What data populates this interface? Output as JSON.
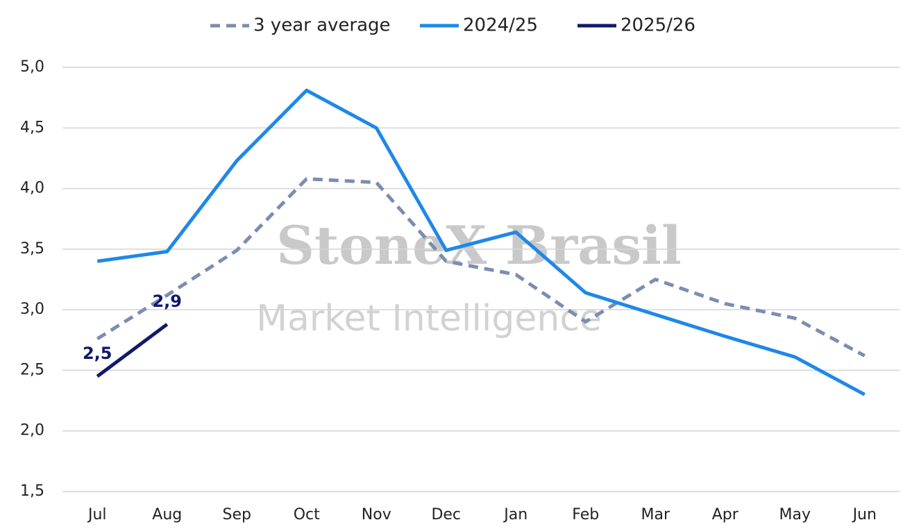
{
  "chart_data": {
    "type": "line",
    "watermark": [
      "StoneX Brasil",
      "Market Intelligence"
    ],
    "categories": [
      "Jul",
      "Aug",
      "Sep",
      "Oct",
      "Nov",
      "Dec",
      "Jan",
      "Feb",
      "Mar",
      "Apr",
      "May",
      "Jun"
    ],
    "series": [
      {
        "name": "3 year average",
        "color": "#7b8db0",
        "dashed": true,
        "values": [
          2.76,
          3.12,
          3.49,
          4.08,
          4.05,
          3.4,
          3.29,
          2.9,
          3.25,
          3.05,
          2.93,
          2.62
        ]
      },
      {
        "name": "2024/25",
        "color": "#1e88e8",
        "values": [
          3.4,
          3.48,
          4.23,
          4.81,
          4.5,
          3.49,
          3.64,
          3.14,
          2.96,
          2.78,
          2.61,
          2.3
        ]
      },
      {
        "name": "2025/26",
        "color": "#12196b",
        "values": [
          2.45,
          2.88,
          null,
          null,
          null,
          null,
          null,
          null,
          null,
          null,
          null,
          null
        ],
        "value_labels": [
          "2,5",
          "2,9",
          null,
          null,
          null,
          null,
          null,
          null,
          null,
          null,
          null,
          null
        ]
      }
    ],
    "ylim": [
      1.5,
      5.0
    ],
    "yticks": [
      {
        "value": 1.5,
        "label": "1,5"
      },
      {
        "value": 2.0,
        "label": "2,0"
      },
      {
        "value": 2.5,
        "label": "2,5"
      },
      {
        "value": 3.0,
        "label": "3,0"
      },
      {
        "value": 3.5,
        "label": "3,5"
      },
      {
        "value": 4.0,
        "label": "4,0"
      },
      {
        "value": 4.5,
        "label": "4,5"
      },
      {
        "value": 5.0,
        "label": "5,0"
      }
    ],
    "grid": true,
    "legend": "top"
  }
}
